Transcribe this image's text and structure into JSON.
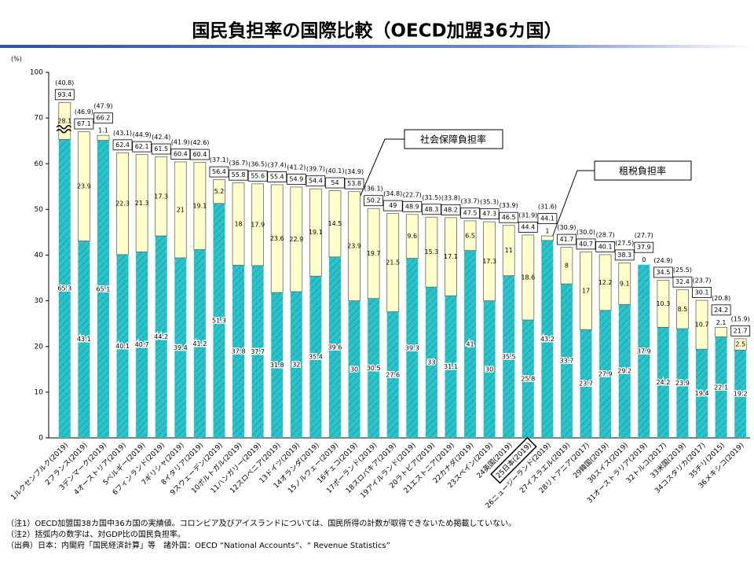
{
  "title": "国民負担率の国際比較（OECD加盟36カ国）",
  "chart_data": {
    "type": "bar",
    "y_unit": "(%)",
    "categories": [
      "1ルクセンブルク(2019)",
      "2フランス(2019)",
      "3デンマーク(2019)",
      "4オーストリア(2019)",
      "5ベルギー(2019)",
      "6フィンランド(2019)",
      "7ギリシャ(2019)",
      "8イタリア(2019)",
      "9スウェーデン(2019)",
      "10ポルトガル(2019)",
      "11ハンガリー(2019)",
      "12スロベニア(2019)",
      "13ドイツ(2019)",
      "14オランダ(2019)",
      "15ノルウェー(2019)",
      "16チェコ(2019)",
      "17ポーランド(2019)",
      "18スロバキア(2019)",
      "19アイルランド(2019)",
      "20ラトビア(2019)",
      "21エストニア(2019)",
      "22カナダ(2019)",
      "23スペイン(2019)",
      "24英国(2019)",
      "25日本(2019)",
      "26ニュージーランド(2019)",
      "27イスラエル(2019)",
      "28リトアニア(2017)",
      "29韓国(2019)",
      "30スイス(2019)",
      "31オーストラリア(2019)",
      "32トルコ(2017)",
      "33米国(2019)",
      "34コスタリカ(2017)",
      "35チリ(2015)",
      "36メキシコ(2019)"
    ],
    "series": [
      {
        "name": "租税負担率",
        "color": "#2bc3c9",
        "values": [
          65.3,
          43.1,
          65.1,
          40.1,
          40.7,
          44.2,
          39.4,
          41.2,
          51.3,
          37.8,
          37.7,
          31.8,
          32.0,
          35.4,
          39.6,
          30.0,
          30.5,
          27.6,
          39.3,
          33.0,
          31.1,
          41.0,
          30.0,
          35.5,
          25.8,
          43.2,
          33.7,
          23.7,
          27.9,
          29.2,
          37.9,
          24.2,
          23.9,
          19.4,
          22.1,
          19.2
        ]
      },
      {
        "name": "社会保障負担率",
        "color": "#ffffcc",
        "values": [
          28.1,
          23.9,
          1.1,
          22.3,
          21.3,
          17.3,
          21.0,
          19.1,
          5.2,
          18.0,
          17.9,
          23.6,
          22.9,
          19.1,
          14.5,
          23.9,
          19.7,
          21.5,
          9.6,
          15.3,
          17.1,
          6.5,
          17.3,
          11.0,
          18.6,
          1.0,
          8.0,
          17.0,
          12.2,
          9.1,
          0.0,
          10.3,
          8.5,
          10.7,
          2.1,
          2.5
        ]
      }
    ],
    "totals": {
      "values": [
        93.4,
        67.1,
        66.2,
        62.4,
        62.1,
        61.5,
        60.4,
        60.4,
        56.4,
        55.8,
        55.6,
        55.4,
        54.9,
        54.4,
        54.0,
        53.8,
        50.2,
        49.0,
        48.9,
        48.3,
        48.2,
        47.5,
        47.3,
        46.5,
        44.4,
        44.1,
        41.7,
        40.7,
        40.1,
        38.3,
        37.9,
        34.5,
        32.4,
        30.1,
        24.2,
        21.7
      ]
    },
    "gdp_ratio": {
      "values": [
        40.8,
        46.9,
        47.9,
        43.1,
        44.9,
        42.4,
        41.9,
        42.6,
        37.1,
        36.7,
        36.5,
        37.4,
        41.2,
        39.7,
        40.1,
        34.9,
        36.1,
        34.8,
        22.7,
        31.5,
        33.8,
        33.7,
        35.3,
        33.9,
        31.9,
        31.6,
        30.9,
        30.0,
        28.7,
        27.5,
        27.7,
        24.9,
        25.5,
        23.7,
        20.8,
        15.9
      ],
      "value_labels": [
        "(40.8)",
        "(46.9)",
        "(47.9)",
        "(43.1)",
        "(44.9)",
        "(42.4)",
        "(41.9)",
        "(42.6)",
        "(37.1)",
        "(36.7)",
        "(36.5)",
        "(37.4)",
        "(41.2)",
        "(39.7)",
        "(40.1)",
        "(34.9)",
        "(36.1)",
        "(34.8)",
        "(22.7)",
        "(31.5)",
        "(33.8)",
        "(33.7)",
        "(35.3)",
        "(33.9)",
        "(31.9)",
        "(31.6)",
        "(30.9)",
        "(30.0)",
        "(28.7)",
        "(27.5)",
        "(27.7)",
        "(24.9)",
        "(25.5)",
        "(23.7)",
        "(20.8)",
        "(15.9)"
      ]
    },
    "ylim": [
      0,
      100
    ],
    "yticks": [
      0,
      10,
      20,
      30,
      40,
      50,
      60,
      70,
      100
    ],
    "axis_break": [
      70,
      90
    ],
    "highlight": 24
  },
  "notes": [
    "（注1）OECD加盟国38カ国中36カ国の実績値。コロンビア及びアイスランドについては、国民所得の計数が取得できないため掲載していない。",
    "（注2）括弧内の数字は、対GDP比の国民負担率。",
    "（出典）日本：内閣府「国民経済計算」等　諸外国：OECD “National Accounts”、“ Revenue Statistics”"
  ]
}
